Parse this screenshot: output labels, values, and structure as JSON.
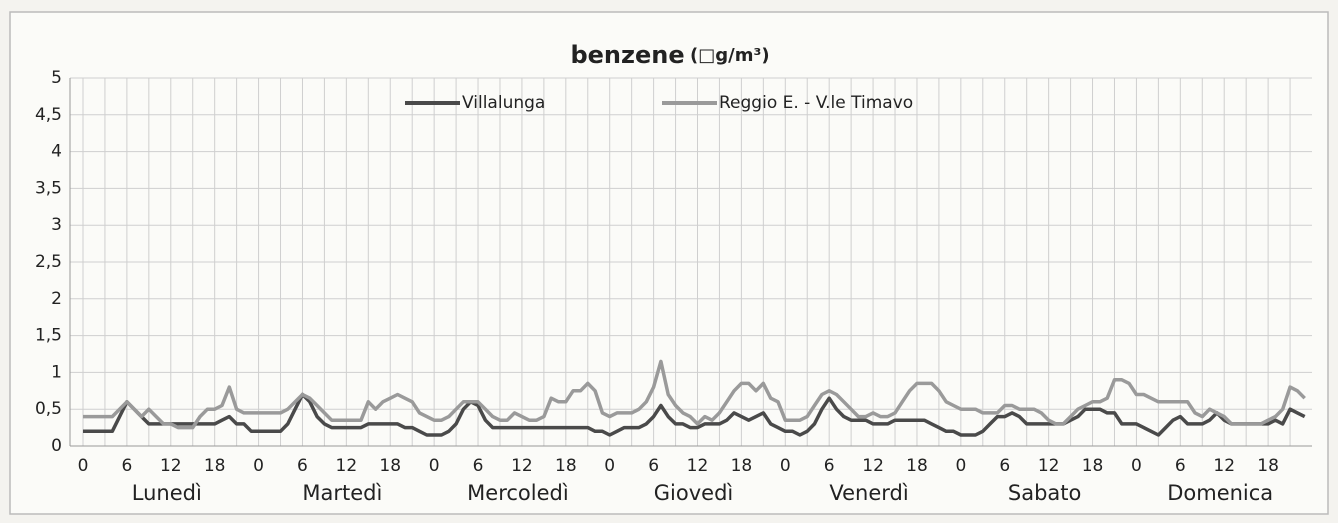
{
  "chart_data": {
    "type": "line",
    "title": "benzene",
    "subtitle": "(□g/m³)",
    "groups": [
      "Lunedì",
      "Martedì",
      "Mercoledì",
      "Giovedì",
      "Venerdì",
      "Sabato",
      "Domenica"
    ],
    "categories": [
      "0",
      null,
      null,
      null,
      null,
      null,
      "6",
      null,
      null,
      null,
      null,
      null,
      "12",
      null,
      null,
      null,
      null,
      null,
      "18",
      null,
      null,
      null,
      null,
      null,
      "0",
      null,
      null,
      null,
      null,
      null,
      "6",
      null,
      null,
      null,
      null,
      null,
      "12",
      null,
      null,
      null,
      null,
      null,
      "18",
      null,
      null,
      null,
      null,
      null,
      "0",
      null,
      null,
      null,
      null,
      null,
      "6",
      null,
      null,
      null,
      null,
      null,
      "12",
      null,
      null,
      null,
      null,
      null,
      "18",
      null,
      null,
      null,
      null,
      null,
      "0",
      null,
      null,
      null,
      null,
      null,
      "6",
      null,
      null,
      null,
      null,
      null,
      "12",
      null,
      null,
      null,
      null,
      null,
      "18",
      null,
      null,
      null,
      null,
      null,
      "0",
      null,
      null,
      null,
      null,
      null,
      "6",
      null,
      null,
      null,
      null,
      null,
      "12",
      null,
      null,
      null,
      null,
      null,
      "18",
      null,
      null,
      null,
      null,
      null,
      "0",
      null,
      null,
      null,
      null,
      null,
      "6",
      null,
      null,
      null,
      null,
      null,
      "12",
      null,
      null,
      null,
      null,
      null,
      "18",
      null,
      null,
      null,
      null,
      null,
      "0",
      null,
      null,
      null,
      null,
      null,
      "6",
      null,
      null,
      null,
      null,
      null,
      "12",
      null,
      null,
      null,
      null,
      null,
      "18",
      null,
      null,
      null,
      null,
      null
    ],
    "series": [
      {
        "name": "Villalunga",
        "color": "#4a4a4a",
        "values": [
          0.2,
          0.2,
          0.2,
          0.2,
          0.2,
          0.4,
          0.6,
          0.5,
          0.4,
          0.3,
          0.3,
          0.3,
          0.3,
          0.3,
          0.3,
          0.3,
          0.3,
          0.3,
          0.3,
          0.35,
          0.4,
          0.3,
          0.3,
          0.2,
          0.2,
          0.2,
          0.2,
          0.2,
          0.3,
          0.5,
          0.7,
          0.6,
          0.4,
          0.3,
          0.25,
          0.25,
          0.25,
          0.25,
          0.25,
          0.3,
          0.3,
          0.3,
          0.3,
          0.3,
          0.25,
          0.25,
          0.2,
          0.15,
          0.15,
          0.15,
          0.2,
          0.3,
          0.5,
          0.6,
          0.55,
          0.35,
          0.25,
          0.25,
          0.25,
          0.25,
          0.25,
          0.25,
          0.25,
          0.25,
          0.25,
          0.25,
          0.25,
          0.25,
          0.25,
          0.25,
          0.2,
          0.2,
          0.15,
          0.2,
          0.25,
          0.25,
          0.25,
          0.3,
          0.4,
          0.55,
          0.4,
          0.3,
          0.3,
          0.25,
          0.25,
          0.3,
          0.3,
          0.3,
          0.35,
          0.45,
          0.4,
          0.35,
          0.4,
          0.45,
          0.3,
          0.25,
          0.2,
          0.2,
          0.15,
          0.2,
          0.3,
          0.5,
          0.65,
          0.5,
          0.4,
          0.35,
          0.35,
          0.35,
          0.3,
          0.3,
          0.3,
          0.35,
          0.35,
          0.35,
          0.35,
          0.35,
          0.3,
          0.25,
          0.2,
          0.2,
          0.15,
          0.15,
          0.15,
          0.2,
          0.3,
          0.4,
          0.4,
          0.45,
          0.4,
          0.3,
          0.3,
          0.3,
          0.3,
          0.3,
          0.3,
          0.35,
          0.4,
          0.5,
          0.5,
          0.5,
          0.45,
          0.45,
          0.3,
          0.3,
          0.3,
          0.25,
          0.2,
          0.15,
          0.25,
          0.35,
          0.4,
          0.3,
          0.3,
          0.3,
          0.35,
          0.45,
          0.35,
          0.3,
          0.3,
          0.3,
          0.3,
          0.3,
          0.3,
          0.35,
          0.3,
          0.5,
          0.45,
          0.4
        ]
      },
      {
        "name": "Reggio E. - V.le Timavo",
        "color": "#9a9a9a",
        "values": [
          0.4,
          0.4,
          0.4,
          0.4,
          0.4,
          0.5,
          0.6,
          0.5,
          0.4,
          0.5,
          0.4,
          0.3,
          0.3,
          0.25,
          0.25,
          0.25,
          0.4,
          0.5,
          0.5,
          0.55,
          0.8,
          0.5,
          0.45,
          0.45,
          0.45,
          0.45,
          0.45,
          0.45,
          0.5,
          0.6,
          0.7,
          0.65,
          0.55,
          0.45,
          0.35,
          0.35,
          0.35,
          0.35,
          0.35,
          0.6,
          0.5,
          0.6,
          0.65,
          0.7,
          0.65,
          0.6,
          0.45,
          0.4,
          0.35,
          0.35,
          0.4,
          0.5,
          0.6,
          0.6,
          0.6,
          0.5,
          0.4,
          0.35,
          0.35,
          0.45,
          0.4,
          0.35,
          0.35,
          0.4,
          0.65,
          0.6,
          0.6,
          0.75,
          0.75,
          0.85,
          0.75,
          0.45,
          0.4,
          0.45,
          0.45,
          0.45,
          0.5,
          0.6,
          0.8,
          1.15,
          0.7,
          0.55,
          0.45,
          0.4,
          0.3,
          0.4,
          0.35,
          0.45,
          0.6,
          0.75,
          0.85,
          0.85,
          0.75,
          0.85,
          0.65,
          0.6,
          0.35,
          0.35,
          0.35,
          0.4,
          0.55,
          0.7,
          0.75,
          0.7,
          0.6,
          0.5,
          0.4,
          0.4,
          0.45,
          0.4,
          0.4,
          0.45,
          0.6,
          0.75,
          0.85,
          0.85,
          0.85,
          0.75,
          0.6,
          0.55,
          0.5,
          0.5,
          0.5,
          0.45,
          0.45,
          0.45,
          0.55,
          0.55,
          0.5,
          0.5,
          0.5,
          0.45,
          0.35,
          0.3,
          0.3,
          0.4,
          0.5,
          0.55,
          0.6,
          0.6,
          0.65,
          0.9,
          0.9,
          0.85,
          0.7,
          0.7,
          0.65,
          0.6,
          0.6,
          0.6,
          0.6,
          0.6,
          0.45,
          0.4,
          0.5,
          0.45,
          0.4,
          0.3,
          0.3,
          0.3,
          0.3,
          0.3,
          0.35,
          0.4,
          0.5,
          0.8,
          0.75,
          0.65
        ]
      }
    ],
    "ylim": [
      0,
      5
    ],
    "yticks": [
      0,
      {
        "value": 0.5,
        "label": "0,5"
      },
      1,
      {
        "value": 1.5,
        "label": "1,5"
      },
      2,
      {
        "value": 2.5,
        "label": "2,5"
      },
      3,
      {
        "value": 3.5,
        "label": "3,5"
      },
      4,
      {
        "value": 4.5,
        "label": "4,5"
      },
      5
    ],
    "grid": true,
    "legend": "top"
  }
}
